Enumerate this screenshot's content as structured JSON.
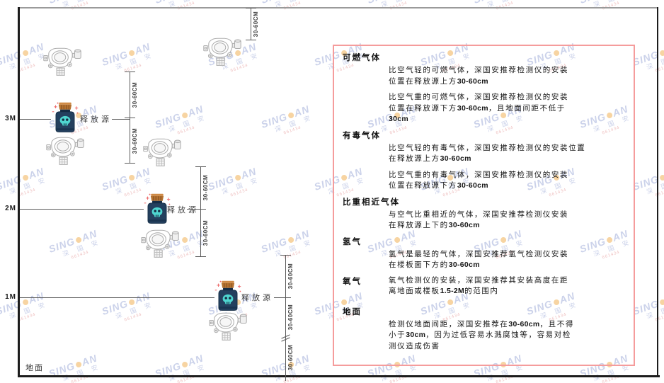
{
  "diagram": {
    "height_labels": [
      "3M",
      "2M",
      "1M"
    ],
    "ground_label": "地面",
    "source_label": "释放源",
    "dim_label": "30-60CM"
  },
  "panel": {
    "border_color": "#f59c9c",
    "sections": [
      {
        "heading": "可燃气体",
        "inline": false,
        "paras": [
          [
            "比空气轻的可燃气体，深国安推荐检测仪的安装",
            "位置在释放源上方30-60cm"
          ],
          [
            "比空气重的可燃气体，深国安推荐检测仪的安装",
            "位置在释放源下方30-60cm，且地面间距不低于",
            "30cm"
          ]
        ]
      },
      {
        "heading": "有毒气体",
        "inline": false,
        "paras": [
          [
            "比空气轻的有毒气体，深国安推荐检测仪的安装位置",
            "在释放源上方30-60cm"
          ],
          [
            "比空气重的有毒气体，深国安推荐检测仪的安装",
            "位置在释放源下方30-60cm"
          ]
        ]
      },
      {
        "heading": "比重相近气体",
        "inline": false,
        "paras": [
          [
            "与空气比重相近的气体，深国安推荐检测仪安装",
            "在释放源上下的30-60cm"
          ]
        ]
      },
      {
        "heading": "氢气",
        "inline": false,
        "paras": [
          [
            "氢气是最轻的气体，深国安推荐氢气检测仪安装",
            "在楼板面下方的30-60cm"
          ]
        ]
      },
      {
        "heading": "氧气",
        "inline": true,
        "paras": [
          [
            "氧气检测仪的安装，深国安推荐其安装高度在距",
            "离地面或楼板1.5-2M的范围内"
          ]
        ]
      },
      {
        "heading": "地面",
        "inline": false,
        "paras": [
          [
            "检测仪地面间距，深国安推荐在30-60cm，且不得",
            "小于30cm，因为过低容易水溅腐蚀等，容易对检",
            "测仪造成伤害"
          ]
        ]
      }
    ]
  },
  "watermark": {
    "brand_left": "SING",
    "brand_right": "AN",
    "cn": "深 国 安",
    "code": "661434",
    "blue": "#94a2d4",
    "dot_color": "#f0a73e",
    "red": "#d96a6a"
  },
  "colors": {
    "line": "#5a5a5a",
    "frame": "#1c1c1c",
    "ceiling": "#9a9a9a",
    "panel_border": "#f59c9c",
    "source_body": "#24405e",
    "source_lid": "#b5722f",
    "source_skull": "#4fd6d0",
    "spark_red": "#ee6b6b",
    "detector_outline": "#aeaeae"
  }
}
